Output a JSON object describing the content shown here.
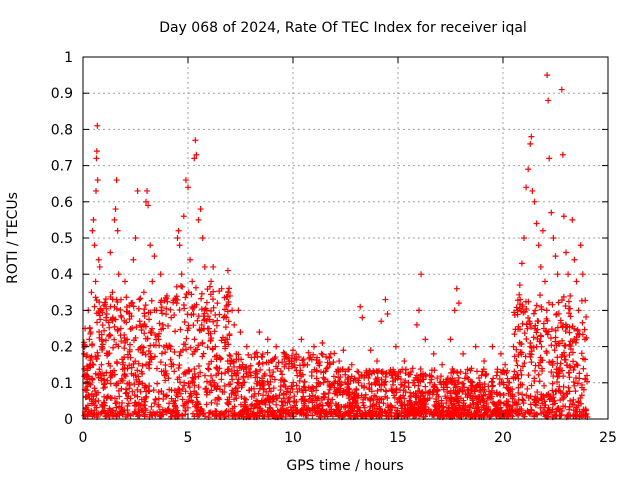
{
  "chart_data": {
    "type": "scatter",
    "title": "Day 068 of 2024, Rate Of TEC Index for receiver iqal",
    "xlabel": "GPS time / hours",
    "ylabel": "ROTI / TECUs",
    "xlim": [
      0,
      25
    ],
    "ylim": [
      0,
      1
    ],
    "x_ticks": [
      0,
      5,
      10,
      15,
      20,
      25
    ],
    "y_ticks": [
      0,
      0.1,
      0.2,
      0.3,
      0.4,
      0.5,
      0.6,
      0.7,
      0.8,
      0.9,
      1
    ],
    "x_tick_labels": [
      "0",
      "5",
      "10",
      "15",
      "20",
      "25"
    ],
    "y_tick_labels": [
      "0",
      "0.1",
      "0.2",
      "0.3",
      "0.4",
      "0.5",
      "0.6",
      "0.7",
      "0.8",
      "0.9",
      "1"
    ],
    "grid": true,
    "marker": "+",
    "series_color": "#ff0000",
    "series": [
      {
        "name": "ROTI",
        "points": [
          [
            0.05,
            0.18
          ],
          [
            0.1,
            0.25
          ],
          [
            0.15,
            0.12
          ],
          [
            0.2,
            0.08
          ],
          [
            0.25,
            0.3
          ],
          [
            0.3,
            0.22
          ],
          [
            0.35,
            0.15
          ],
          [
            0.4,
            0.35
          ],
          [
            0.45,
            0.52
          ],
          [
            0.5,
            0.55
          ],
          [
            0.55,
            0.48
          ],
          [
            0.6,
            0.38
          ],
          [
            0.62,
            0.63
          ],
          [
            0.64,
            0.72
          ],
          [
            0.66,
            0.74
          ],
          [
            0.68,
            0.81
          ],
          [
            0.7,
            0.66
          ],
          [
            0.75,
            0.44
          ],
          [
            0.8,
            0.42
          ],
          [
            0.85,
            0.3
          ],
          [
            0.9,
            0.2
          ],
          [
            1.0,
            0.12
          ],
          [
            1.1,
            0.28
          ],
          [
            1.2,
            0.18
          ],
          [
            1.3,
            0.46
          ],
          [
            1.4,
            0.35
          ],
          [
            1.5,
            0.55
          ],
          [
            1.55,
            0.58
          ],
          [
            1.6,
            0.66
          ],
          [
            1.65,
            0.52
          ],
          [
            1.7,
            0.4
          ],
          [
            1.8,
            0.25
          ],
          [
            1.9,
            0.15
          ],
          [
            2.0,
            0.38
          ],
          [
            2.1,
            0.22
          ],
          [
            2.2,
            0.1
          ],
          [
            2.3,
            0.32
          ],
          [
            2.4,
            0.44
          ],
          [
            2.5,
            0.5
          ],
          [
            2.6,
            0.63
          ],
          [
            2.7,
            0.27
          ],
          [
            2.8,
            0.2
          ],
          [
            2.9,
            0.35
          ],
          [
            3.0,
            0.6
          ],
          [
            3.05,
            0.63
          ],
          [
            3.1,
            0.59
          ],
          [
            3.2,
            0.48
          ],
          [
            3.3,
            0.38
          ],
          [
            3.4,
            0.45
          ],
          [
            3.5,
            0.3
          ],
          [
            3.6,
            0.22
          ],
          [
            3.7,
            0.4
          ],
          [
            3.8,
            0.26
          ],
          [
            3.9,
            0.12
          ],
          [
            4.0,
            0.34
          ],
          [
            4.1,
            0.2
          ],
          [
            4.2,
            0.28
          ],
          [
            4.3,
            0.15
          ],
          [
            4.4,
            0.33
          ],
          [
            4.5,
            0.5
          ],
          [
            4.55,
            0.52
          ],
          [
            4.6,
            0.48
          ],
          [
            4.7,
            0.4
          ],
          [
            4.8,
            0.56
          ],
          [
            4.9,
            0.66
          ],
          [
            5.0,
            0.64
          ],
          [
            5.1,
            0.44
          ],
          [
            5.2,
            0.38
          ],
          [
            5.3,
            0.72
          ],
          [
            5.35,
            0.77
          ],
          [
            5.4,
            0.73
          ],
          [
            5.5,
            0.55
          ],
          [
            5.6,
            0.58
          ],
          [
            5.7,
            0.5
          ],
          [
            5.8,
            0.42
          ],
          [
            5.9,
            0.3
          ],
          [
            6.0,
            0.25
          ],
          [
            6.1,
            0.38
          ],
          [
            6.2,
            0.42
          ],
          [
            6.3,
            0.2
          ],
          [
            6.4,
            0.32
          ],
          [
            6.5,
            0.14
          ],
          [
            6.6,
            0.36
          ],
          [
            6.7,
            0.28
          ],
          [
            6.8,
            0.22
          ],
          [
            6.9,
            0.41
          ],
          [
            7.0,
            0.34
          ],
          [
            7.1,
            0.3
          ],
          [
            7.2,
            0.26
          ],
          [
            7.3,
            0.18
          ],
          [
            7.4,
            0.3
          ],
          [
            7.5,
            0.24
          ],
          [
            7.6,
            0.15
          ],
          [
            7.8,
            0.2
          ],
          [
            8.0,
            0.12
          ],
          [
            8.2,
            0.18
          ],
          [
            8.4,
            0.24
          ],
          [
            8.6,
            0.1
          ],
          [
            8.8,
            0.22
          ],
          [
            9.0,
            0.16
          ],
          [
            9.2,
            0.2
          ],
          [
            9.4,
            0.08
          ],
          [
            9.6,
            0.18
          ],
          [
            9.8,
            0.14
          ],
          [
            10.0,
            0.19
          ],
          [
            10.2,
            0.12
          ],
          [
            10.4,
            0.22
          ],
          [
            10.6,
            0.08
          ],
          [
            10.8,
            0.17
          ],
          [
            11.0,
            0.2
          ],
          [
            11.2,
            0.1
          ],
          [
            11.4,
            0.21
          ],
          [
            11.6,
            0.14
          ],
          [
            11.8,
            0.18
          ],
          [
            12.0,
            0.07
          ],
          [
            12.2,
            0.16
          ],
          [
            12.4,
            0.19
          ],
          [
            12.6,
            0.11
          ],
          [
            12.8,
            0.15
          ],
          [
            13.0,
            0.06
          ],
          [
            13.2,
            0.31
          ],
          [
            13.3,
            0.28
          ],
          [
            13.5,
            0.12
          ],
          [
            13.7,
            0.19
          ],
          [
            13.9,
            0.1
          ],
          [
            14.0,
            0.16
          ],
          [
            14.2,
            0.27
          ],
          [
            14.4,
            0.33
          ],
          [
            14.5,
            0.29
          ],
          [
            14.7,
            0.12
          ],
          [
            14.9,
            0.2
          ],
          [
            15.1,
            0.08
          ],
          [
            15.3,
            0.16
          ],
          [
            15.5,
            0.1
          ],
          [
            15.7,
            0.14
          ],
          [
            15.9,
            0.26
          ],
          [
            16.0,
            0.3
          ],
          [
            16.1,
            0.4
          ],
          [
            16.3,
            0.22
          ],
          [
            16.5,
            0.12
          ],
          [
            16.7,
            0.18
          ],
          [
            16.9,
            0.08
          ],
          [
            17.1,
            0.15
          ],
          [
            17.3,
            0.1
          ],
          [
            17.5,
            0.22
          ],
          [
            17.7,
            0.3
          ],
          [
            17.8,
            0.36
          ],
          [
            17.9,
            0.32
          ],
          [
            18.1,
            0.18
          ],
          [
            18.3,
            0.08
          ],
          [
            18.5,
            0.14
          ],
          [
            18.7,
            0.2
          ],
          [
            18.9,
            0.1
          ],
          [
            19.1,
            0.16
          ],
          [
            19.3,
            0.09
          ],
          [
            19.5,
            0.2
          ],
          [
            19.7,
            0.12
          ],
          [
            19.9,
            0.18
          ],
          [
            20.1,
            0.15
          ],
          [
            20.3,
            0.1
          ],
          [
            20.5,
            0.2
          ],
          [
            20.7,
            0.3
          ],
          [
            20.8,
            0.37
          ],
          [
            20.9,
            0.43
          ],
          [
            21.0,
            0.5
          ],
          [
            21.1,
            0.64
          ],
          [
            21.2,
            0.69
          ],
          [
            21.3,
            0.76
          ],
          [
            21.35,
            0.78
          ],
          [
            21.4,
            0.63
          ],
          [
            21.5,
            0.6
          ],
          [
            21.6,
            0.54
          ],
          [
            21.7,
            0.48
          ],
          [
            21.8,
            0.42
          ],
          [
            21.9,
            0.52
          ],
          [
            22.0,
            0.38
          ],
          [
            22.1,
            0.95
          ],
          [
            22.15,
            0.88
          ],
          [
            22.2,
            0.72
          ],
          [
            22.3,
            0.57
          ],
          [
            22.4,
            0.5
          ],
          [
            22.5,
            0.45
          ],
          [
            22.6,
            0.4
          ],
          [
            22.8,
            0.91
          ],
          [
            22.85,
            0.73
          ],
          [
            22.9,
            0.56
          ],
          [
            23.0,
            0.46
          ],
          [
            23.1,
            0.4
          ],
          [
            23.2,
            0.34
          ],
          [
            23.3,
            0.55
          ],
          [
            23.4,
            0.44
          ],
          [
            23.5,
            0.38
          ],
          [
            23.6,
            0.3
          ],
          [
            23.7,
            0.48
          ],
          [
            23.8,
            0.4
          ],
          [
            23.9,
            0.22
          ],
          [
            24.0,
            0.12
          ]
        ]
      }
    ]
  }
}
